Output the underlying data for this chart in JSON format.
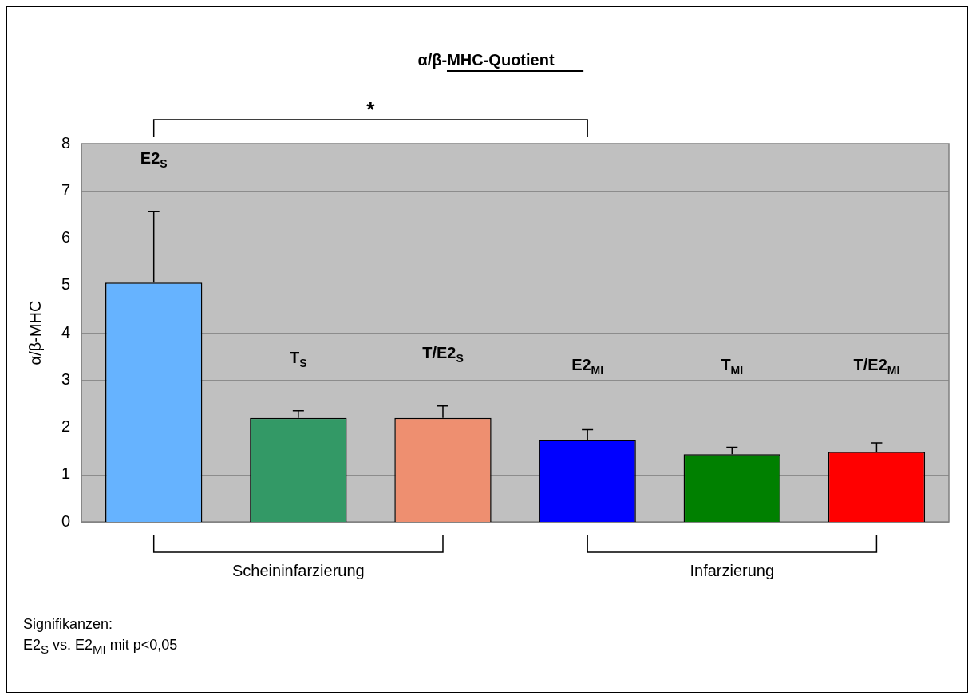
{
  "chart_data": {
    "type": "bar",
    "title": "α/β-MHC-Quotient",
    "ylabel": "α/β-MHC",
    "categories": [
      "E2$_{S}$",
      "T$_{S}$",
      "T/E2$_{S}$",
      "E2$_{MI}$",
      "T$_{MI}$",
      "T/E2$_{MI}$"
    ],
    "values": [
      5.06,
      2.2,
      2.2,
      1.73,
      1.43,
      1.48
    ],
    "errors": [
      1.5,
      0.15,
      0.25,
      0.22,
      0.15,
      0.19
    ],
    "colors": [
      "#66b3ff",
      "#339966",
      "#ee8f70",
      "#0000ff",
      "#008000",
      "#ff0000"
    ],
    "ylim": [
      0,
      8
    ],
    "yticks": [
      0,
      1,
      2,
      3,
      4,
      5,
      6,
      7,
      8
    ],
    "grid": "y",
    "legend": false,
    "annotations": [
      "*",
      "Scheininfarzierung",
      "Infarzierung",
      "Signifikanzen:",
      "E2$_{S}$ vs. E2$_{MI}$ mit p<0,05"
    ]
  }
}
